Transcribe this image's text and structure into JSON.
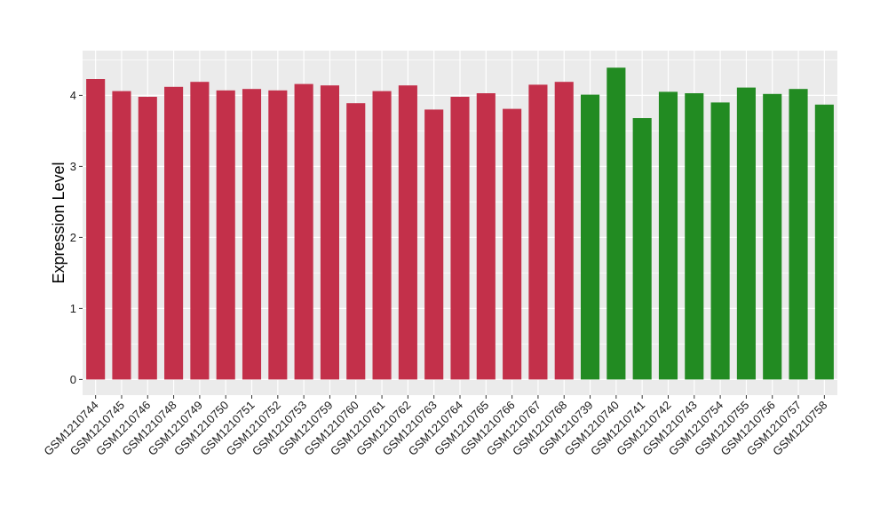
{
  "chart_data": {
    "type": "bar",
    "ylabel": "Expression Level",
    "xlabel": "",
    "ylim": [
      -0.22,
      4.63
    ],
    "yticks": [
      0,
      1,
      2,
      3,
      4
    ],
    "grid": true,
    "background": "#ebebeb",
    "categories": [
      "GSM1210744",
      "GSM1210745",
      "GSM1210746",
      "GSM1210748",
      "GSM1210749",
      "GSM1210750",
      "GSM1210751",
      "GSM1210752",
      "GSM1210753",
      "GSM1210759",
      "GSM1210760",
      "GSM1210761",
      "GSM1210762",
      "GSM1210763",
      "GSM1210764",
      "GSM1210765",
      "GSM1210766",
      "GSM1210767",
      "GSM1210768",
      "GSM1210739",
      "GSM1210740",
      "GSM1210741",
      "GSM1210742",
      "GSM1210743",
      "GSM1210754",
      "GSM1210755",
      "GSM1210756",
      "GSM1210757",
      "GSM1210758"
    ],
    "values": [
      4.23,
      4.06,
      3.98,
      4.12,
      4.19,
      4.07,
      4.09,
      4.07,
      4.16,
      4.14,
      3.89,
      4.06,
      4.14,
      3.8,
      3.98,
      4.03,
      3.81,
      4.15,
      4.19,
      4.01,
      4.39,
      3.68,
      4.05,
      4.03,
      3.9,
      4.11,
      4.02,
      4.09,
      3.87
    ],
    "groups": [
      "a",
      "a",
      "a",
      "a",
      "a",
      "a",
      "a",
      "a",
      "a",
      "a",
      "a",
      "a",
      "a",
      "a",
      "a",
      "a",
      "a",
      "a",
      "a",
      "b",
      "b",
      "b",
      "b",
      "b",
      "b",
      "b",
      "b",
      "b",
      "b"
    ],
    "colors": {
      "a": "#c3304a",
      "b": "#228b22"
    }
  }
}
